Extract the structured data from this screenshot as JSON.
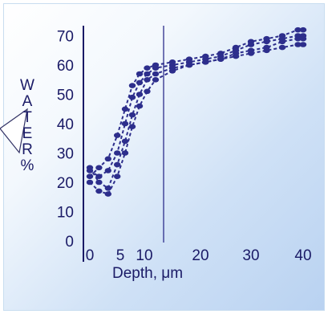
{
  "chart_data": {
    "type": "line",
    "xlabel": "Depth, μm",
    "ylabel": "WATER%",
    "x_ticks": [
      "0",
      "5",
      "10",
      "20",
      "30",
      "40"
    ],
    "y_ticks": [
      "0",
      "10",
      "20",
      "30",
      "40",
      "50",
      "60",
      "70"
    ],
    "ylim": [
      0,
      75
    ],
    "grid": false,
    "reference_line_x": 12,
    "colors": {
      "series": "#2d2e8c",
      "axis": "#1a1a66"
    },
    "series": [
      {
        "x": [
          0,
          1.5,
          3,
          4.5,
          6,
          7.5,
          9,
          10.5,
          12,
          15,
          18,
          21,
          24,
          27,
          30,
          33,
          36,
          39,
          40
        ],
        "values": [
          22,
          25,
          28,
          36,
          45,
          53,
          57,
          59,
          60,
          61,
          62,
          63,
          64,
          66,
          68,
          69,
          70,
          72,
          72
        ]
      },
      {
        "x": [
          0,
          1.5,
          3,
          4.5,
          6,
          7.5,
          9,
          10.5,
          12,
          15,
          18,
          21,
          24,
          27,
          30,
          33,
          36,
          39,
          40
        ],
        "values": [
          24,
          22,
          24,
          30,
          40,
          49,
          54,
          57,
          59,
          60,
          61,
          62,
          63,
          65,
          67,
          68,
          69,
          70,
          70
        ]
      },
      {
        "x": [
          0,
          1.5,
          3,
          4.5,
          6,
          7.5,
          9,
          10.5,
          12,
          15,
          18,
          21,
          24,
          27,
          30,
          33,
          36,
          39,
          40
        ],
        "values": [
          25,
          20,
          18,
          26,
          34,
          43,
          50,
          55,
          57,
          59,
          60,
          61,
          62,
          64,
          65,
          66,
          68,
          69,
          69
        ]
      },
      {
        "x": [
          0,
          1.5,
          3,
          4.5,
          6,
          7.5,
          9,
          10.5,
          12,
          15,
          18,
          21,
          24,
          27,
          30,
          33,
          36,
          39,
          40
        ],
        "values": [
          20,
          17,
          16,
          22,
          30,
          39,
          46,
          51,
          55,
          58,
          60,
          61,
          62,
          63,
          64,
          65,
          66,
          67,
          67
        ]
      }
    ]
  }
}
